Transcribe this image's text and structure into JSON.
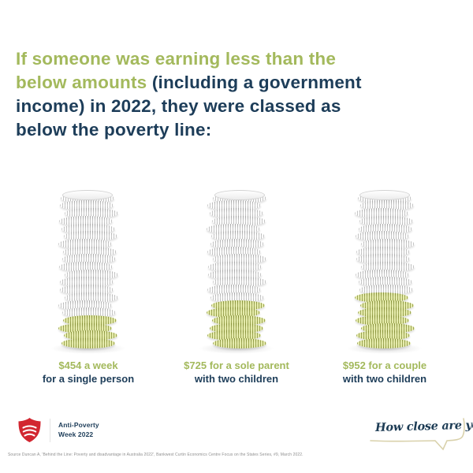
{
  "headline": {
    "lines": [
      {
        "green": "If someone was earning less than the",
        "navy": ""
      },
      {
        "green": "below amounts ",
        "navy": "(including a government"
      },
      {
        "green": "",
        "navy": "income) in 2022, they were classed as"
      },
      {
        "green": "",
        "navy": "below the poverty line:"
      }
    ]
  },
  "stacks": [
    {
      "amount_label": "$454 a week",
      "desc_label": "for a single person",
      "total_coins": 20,
      "green_coins": 4
    },
    {
      "amount_label": "$725 for a sole parent",
      "desc_label": "with two children",
      "total_coins": 20,
      "green_coins": 6
    },
    {
      "amount_label": "$952 for a couple",
      "desc_label": "with two children",
      "total_coins": 20,
      "green_coins": 7
    }
  ],
  "chart_data": {
    "type": "bar",
    "title": "If someone was earning less than the below amounts (including a government income) in 2022, they were classed as below the poverty line:",
    "categories": [
      "single person",
      "sole parent with two children",
      "couple with two children"
    ],
    "values": [
      454,
      725,
      952
    ],
    "value_unit": "dollars per week",
    "labels": [
      "$454 a week for a single person",
      "$725 for a sole parent with two children",
      "$952 for a couple with two children"
    ],
    "pictogram": "coin-stacks",
    "coin_counts": {
      "total": [
        20,
        20,
        20
      ],
      "green_bottom": [
        4,
        6,
        7
      ]
    }
  },
  "footer": {
    "logo_name": "salvation-army-shield",
    "program_line1": "Anti-Poverty",
    "program_line2": "Week 2022",
    "tagline": "How close are you?",
    "source": "Source Duncan A, 'Behind the Line: Poverty and disadvantage in Australia 2022', Bankwest Curtin Economics Centre Focus on the States Series, #9, March 2022."
  },
  "colors": {
    "accent_green": "#a3b95c",
    "navy": "#1d3d59",
    "coin_green": "#b4bf66",
    "coin_silver": "#e6e6e6",
    "shield_red": "#d22630",
    "bubble_line": "#d9d1ab",
    "source_gray": "#8f8f8f",
    "background": "#ffffff"
  }
}
